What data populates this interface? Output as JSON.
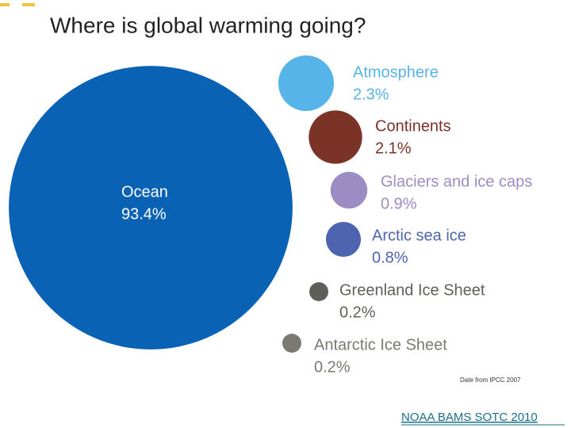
{
  "chart_data": {
    "type": "bubble",
    "title": "Where is global warming going?",
    "categories": [
      "Ocean",
      "Atmosphere",
      "Continents",
      "Glaciers and ice caps",
      "Arctic sea ice",
      "Greenland Ice Sheet",
      "Antarctic Ice Sheet"
    ],
    "values": [
      93.4,
      2.3,
      2.1,
      0.9,
      0.8,
      0.2,
      0.2
    ],
    "value_labels": [
      "93.4%",
      "2.3%",
      "2.1%",
      "0.9%",
      "0.8%",
      "0.2%",
      "0.2%"
    ],
    "colors": [
      "#0a62b4",
      "#56b4e9",
      "#7b3328",
      "#9c8cc4",
      "#4e64b0",
      "#5f5f5a",
      "#7a7a72"
    ],
    "note": "Date from IPCC 2007"
  },
  "footer_link": "NOAA BAMS SOTC 2010"
}
